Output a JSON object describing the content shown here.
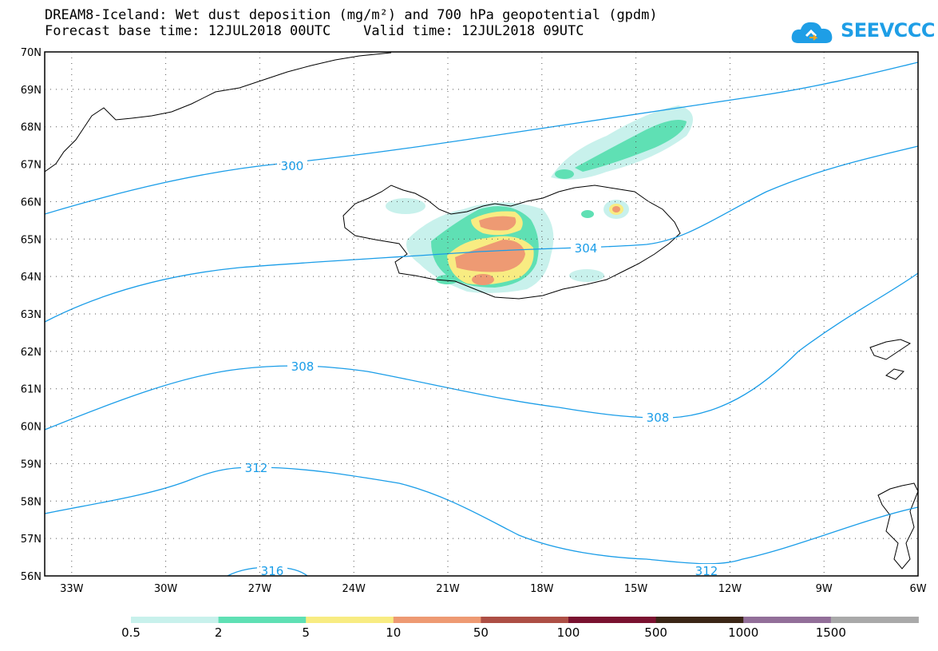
{
  "header": {
    "title_line1": "DREAM8-Iceland: Wet dust deposition (mg/m²) and 700 hPa geopotential (gpdm)",
    "title_line2": "Forecast base time: 12JUL2018 00UTC    Valid time: 12JUL2018 09UTC",
    "logo_text": "SEEVCCC",
    "logo_color": "#1e9ee6"
  },
  "map": {
    "lat_labels": [
      "70N",
      "69N",
      "68N",
      "67N",
      "66N",
      "65N",
      "64N",
      "63N",
      "62N",
      "61N",
      "60N",
      "59N",
      "58N",
      "57N",
      "56N"
    ],
    "lon_labels": [
      "33W",
      "30W",
      "27W",
      "24W",
      "21W",
      "18W",
      "15W",
      "12W",
      "9W",
      "6W"
    ],
    "contour_color": "#1a9de8",
    "contour_labels": [
      "300",
      "304",
      "308",
      "308",
      "312",
      "312",
      "316"
    ]
  },
  "legend": {
    "colors": [
      "#c8f1ec",
      "#5fe0b4",
      "#f8ec82",
      "#ee9a73",
      "#ad4f45",
      "#7a1230",
      "#3b2616",
      "#926f99",
      "#a9a9a9"
    ],
    "labels": [
      "0.5",
      "2",
      "5",
      "10",
      "50",
      "100",
      "500",
      "1000",
      "1500"
    ]
  }
}
